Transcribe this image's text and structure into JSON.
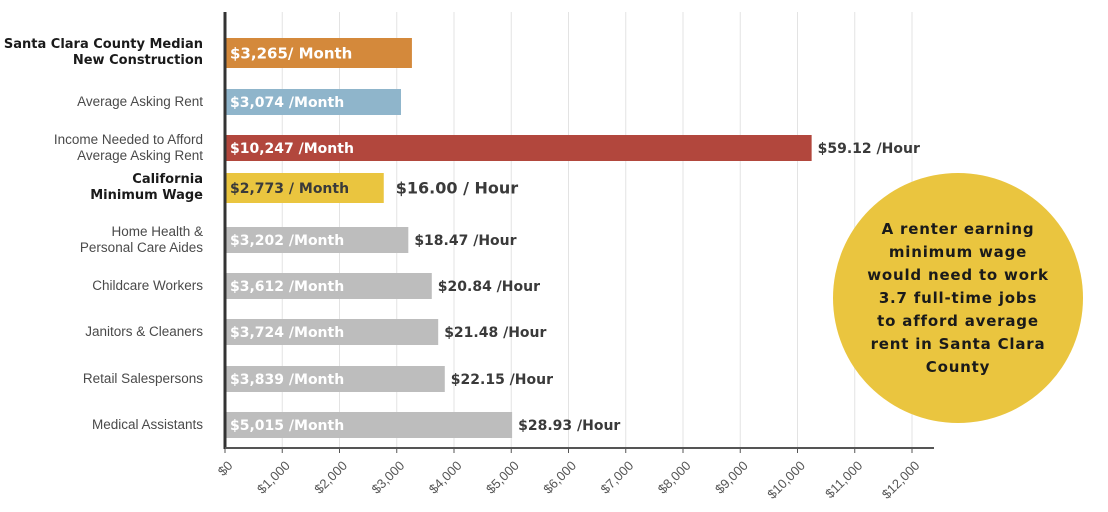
{
  "chart_data": {
    "type": "bar",
    "orientation": "horizontal",
    "categories": [
      "Santa Clara County Median\nNew Construction",
      "Average Asking Rent",
      "Income Needed to Afford\nAverage Asking Rent",
      "California\nMinimum Wage",
      "Home Health &\nPersonal Care Aides",
      "Childcare Workers",
      "Janitors & Cleaners",
      "Retail Salespersons",
      "Medical Assistants"
    ],
    "values": [
      3265,
      3074,
      10247,
      2773,
      3202,
      3612,
      3724,
      3839,
      5015
    ],
    "value_labels": [
      "$3,265/ Month",
      "$3,074 /Month",
      "$10,247 /Month",
      "$2,773 / Month",
      "$3,202 /Month",
      "$3,612 /Month",
      "$3,724 /Month",
      "$3,839 /Month",
      "$5,015 /Month"
    ],
    "colors": [
      "#d4893b",
      "#8fb5cb",
      "#b2473d",
      "#eac53f",
      "#bdbdbd",
      "#bdbdbd",
      "#bdbdbd",
      "#bdbdbd",
      "#bdbdbd"
    ],
    "hourly": {
      "values": [
        null,
        null,
        59.12,
        16.0,
        18.47,
        20.84,
        21.48,
        22.15,
        28.93
      ],
      "value_labels": [
        null,
        null,
        "$59.12 /Hour",
        "$16.00 / Hour",
        "$18.47 /Hour",
        "$20.84 /Hour",
        "$21.48 /Hour",
        "$22.15 /Hour",
        "$28.93 /Hour"
      ]
    },
    "xlim": [
      0,
      12000
    ],
    "xticks": [
      {
        "value": 0,
        "label": "$0"
      },
      {
        "value": 1000,
        "label": "$1,000"
      },
      {
        "value": 2000,
        "label": "$2,000"
      },
      {
        "value": 3000,
        "label": "$3,000"
      },
      {
        "value": 4000,
        "label": "$4,000"
      },
      {
        "value": 5000,
        "label": "$5,000"
      },
      {
        "value": 6000,
        "label": "$6,000"
      },
      {
        "value": 7000,
        "label": "$7,000"
      },
      {
        "value": 8000,
        "label": "$8,000"
      },
      {
        "value": 9000,
        "label": "$9,000"
      },
      {
        "value": 10000,
        "label": "$10,000"
      },
      {
        "value": 11000,
        "label": "$11,000"
      },
      {
        "value": 12000,
        "label": "$12,000"
      }
    ],
    "grid": true,
    "annotation": {
      "text": "A renter earning\nminimum wage\nwould need to work\n3.7 full-time jobs\nto afford average\nrent in Santa Clara\nCounty",
      "color": "#eac53f"
    }
  }
}
